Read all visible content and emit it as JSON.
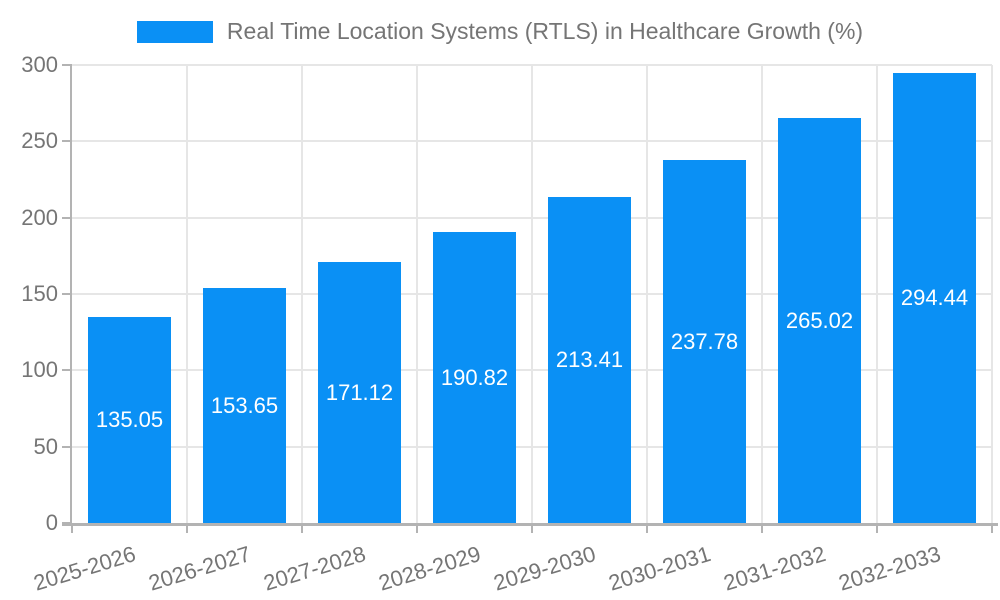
{
  "legend": {
    "label": "Real Time Location Systems (RTLS) in Healthcare Growth (%)"
  },
  "chart_data": {
    "type": "bar",
    "title": "Real Time Location Systems (RTLS) in Healthcare Growth (%)",
    "categories": [
      "2025-2026",
      "2026-2027",
      "2027-2028",
      "2028-2029",
      "2029-2030",
      "2030-2031",
      "2031-2032",
      "2032-2033"
    ],
    "series": [
      {
        "name": "Real Time Location Systems (RTLS) in Healthcare Growth (%)",
        "values": [
          135.05,
          153.65,
          171.12,
          190.82,
          213.41,
          237.78,
          265.02,
          294.44
        ]
      }
    ],
    "value_labels": [
      "135.05",
      "153.65",
      "171.12",
      "190.82",
      "213.41",
      "237.78",
      "265.02",
      "294.44"
    ],
    "xlabel": "",
    "ylabel": "",
    "ylim": [
      0,
      300
    ],
    "yticks": [
      0,
      50,
      100,
      150,
      200,
      250,
      300
    ],
    "grid": true,
    "legend_position": "top",
    "x_tick_rotation_deg": -17,
    "colors": {
      "bar": "#0a90f5",
      "grid": "#e6e6e6",
      "axis": "#b3b3b3",
      "tick_text": "#757575",
      "value_label_text": "#ffffff",
      "background": "#ffffff"
    }
  }
}
